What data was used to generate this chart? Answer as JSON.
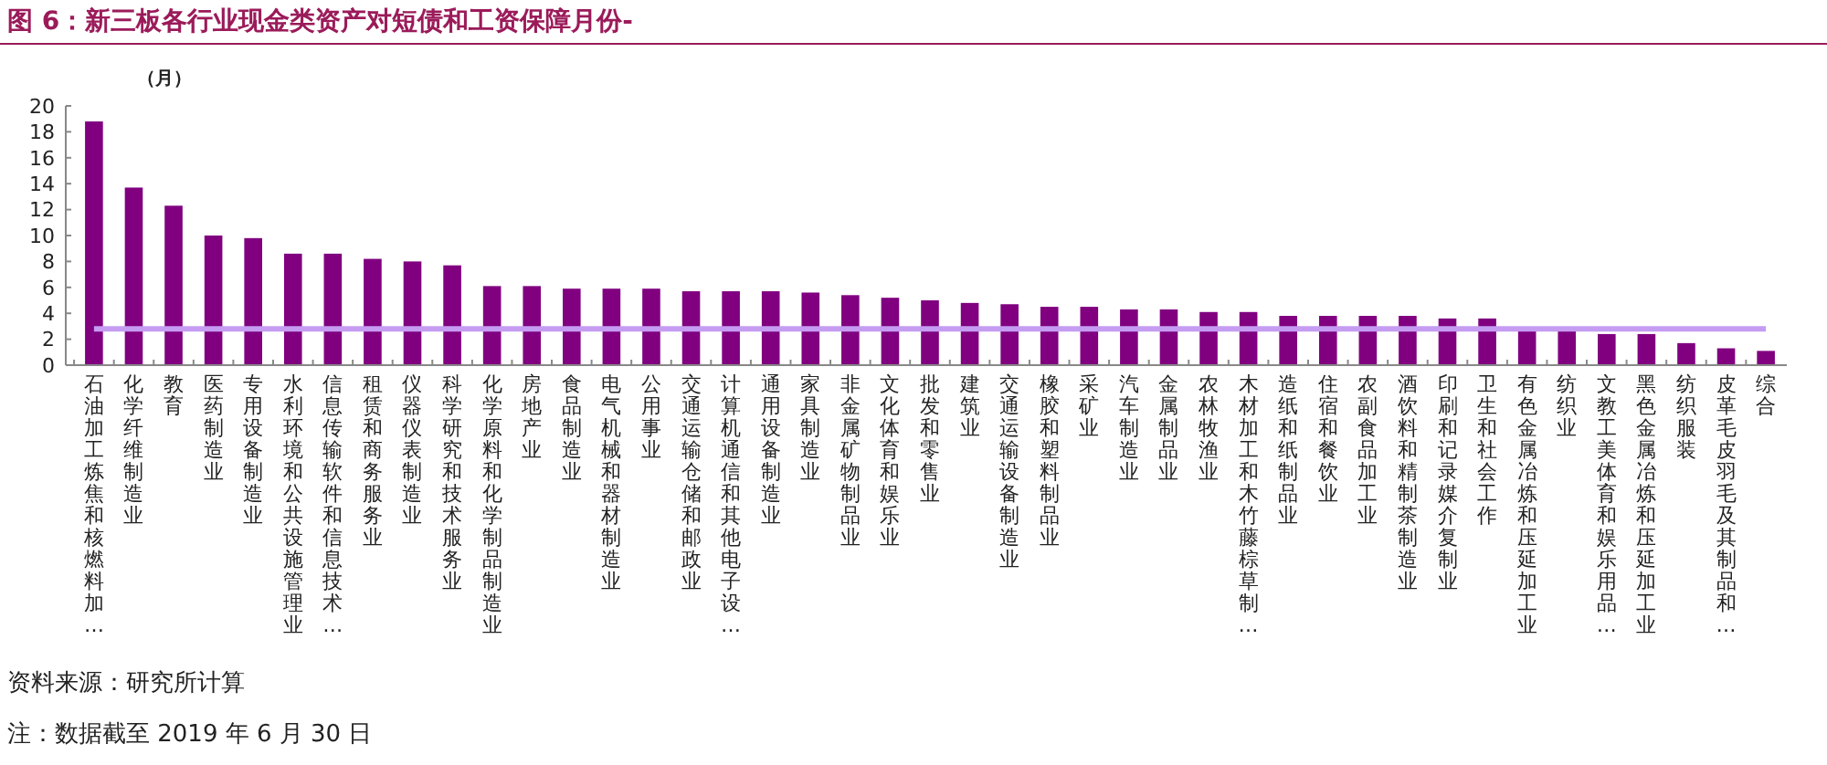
{
  "chart_data": {
    "type": "bar",
    "title": "图 6：新三板各行业现金类资产对短债和工资保障月份-",
    "ylabel": "（月）",
    "categories": [
      "石油加工炼焦和核燃料加…",
      "化学纤维制造业",
      "教育",
      "医药制造业",
      "专用设备制造业",
      "水利环境和公共设施管理业",
      "信息传输软件和信息技术…",
      "租赁和商务服务业",
      "仪器仪表制造业",
      "科学研究和技术服务业",
      "化学原料和化学制品制造业",
      "房地产业",
      "食品制造业",
      "电气机械和器材制造业",
      "公用事业",
      "交通运输仓储和邮政业",
      "计算机通信和其他电子设…",
      "通用设备制造业",
      "家具制造业",
      "非金属矿物制品业",
      "文化体育和娱乐业",
      "批发和零售业",
      "建筑业",
      "交通运输设备制造业",
      "橡胶和塑料制品业",
      "采矿业",
      "汽车制造业",
      "金属制品业",
      "农林牧渔业",
      "木材加工和木竹藤棕草制…",
      "造纸和纸制品业",
      "住宿和餐饮业",
      "农副食品加工业",
      "酒饮料和精制茶制造业",
      "印刷和记录媒介复制业",
      "卫生和社会工作",
      "有色金属冶炼和压延加工业",
      "纺织业",
      "文教工美体育和娱乐用品…",
      "黑色金属冶炼和压延加工业",
      "纺织服装",
      "皮革毛皮羽毛及其制品和…",
      "综合"
    ],
    "values": [
      18.8,
      13.7,
      12.3,
      10.0,
      9.8,
      8.6,
      8.6,
      8.2,
      8.0,
      7.7,
      6.1,
      6.1,
      5.9,
      5.9,
      5.9,
      5.7,
      5.7,
      5.7,
      5.6,
      5.4,
      5.2,
      5.0,
      4.8,
      4.7,
      4.5,
      4.5,
      4.3,
      4.3,
      4.1,
      4.1,
      3.8,
      3.8,
      3.8,
      3.8,
      3.6,
      3.6,
      2.7,
      2.7,
      2.4,
      2.4,
      1.7,
      1.3,
      1.1
    ],
    "color": "#800080",
    "ylim": [
      0,
      20
    ],
    "yticks": [
      0,
      2,
      4,
      6,
      8,
      10,
      12,
      14,
      16,
      18,
      20
    ],
    "ref_lines": [
      {
        "axis": "y",
        "value": 2.8,
        "color": "#c59cf2"
      }
    ],
    "annotations": [
      "资料来源：研究所计算",
      "注：数据截至 2019 年 6 月 30 日"
    ]
  }
}
